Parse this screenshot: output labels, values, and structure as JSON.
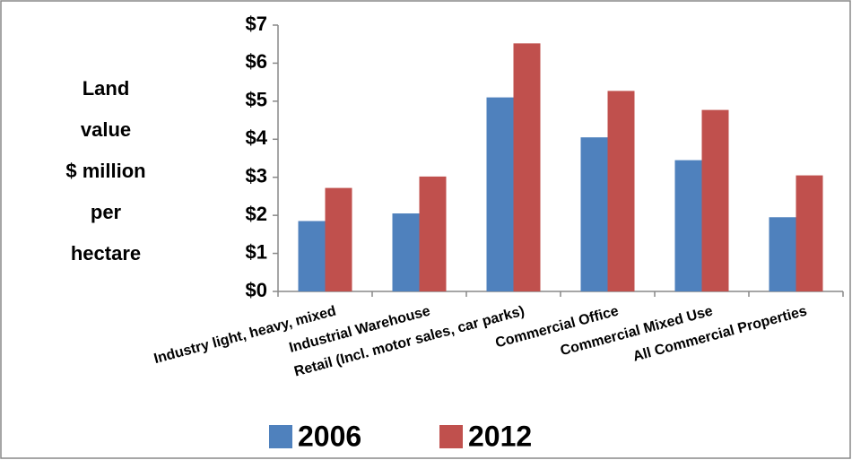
{
  "chart_data": {
    "type": "bar",
    "ylabel": [
      "Land",
      "value",
      "$ million",
      "per",
      "hectare"
    ],
    "categories": [
      "Industry light, heavy, mixed",
      "Industrial Warehouse",
      "Retail (Incl. motor sales, car parks)",
      "Commercial Office",
      "Commercial Mixed Use",
      "All Commercial Properties"
    ],
    "series": [
      {
        "name": "2006",
        "color": "#4f81bd",
        "values": [
          1.85,
          2.05,
          5.1,
          4.05,
          3.45,
          1.95
        ]
      },
      {
        "name": "2012",
        "color": "#c0504d",
        "values": [
          2.72,
          3.02,
          6.52,
          5.27,
          4.77,
          3.05
        ]
      }
    ],
    "ylim": [
      0,
      7
    ],
    "yticks": [
      {
        "value": 0,
        "label": "$0"
      },
      {
        "value": 1,
        "label": "$1"
      },
      {
        "value": 2,
        "label": "$2"
      },
      {
        "value": 3,
        "label": "$3"
      },
      {
        "value": 4,
        "label": "$4"
      },
      {
        "value": 5,
        "label": "$5"
      },
      {
        "value": 6,
        "label": "$6"
      },
      {
        "value": 7,
        "label": "$7"
      }
    ],
    "grid": false,
    "legend": "bottom"
  }
}
